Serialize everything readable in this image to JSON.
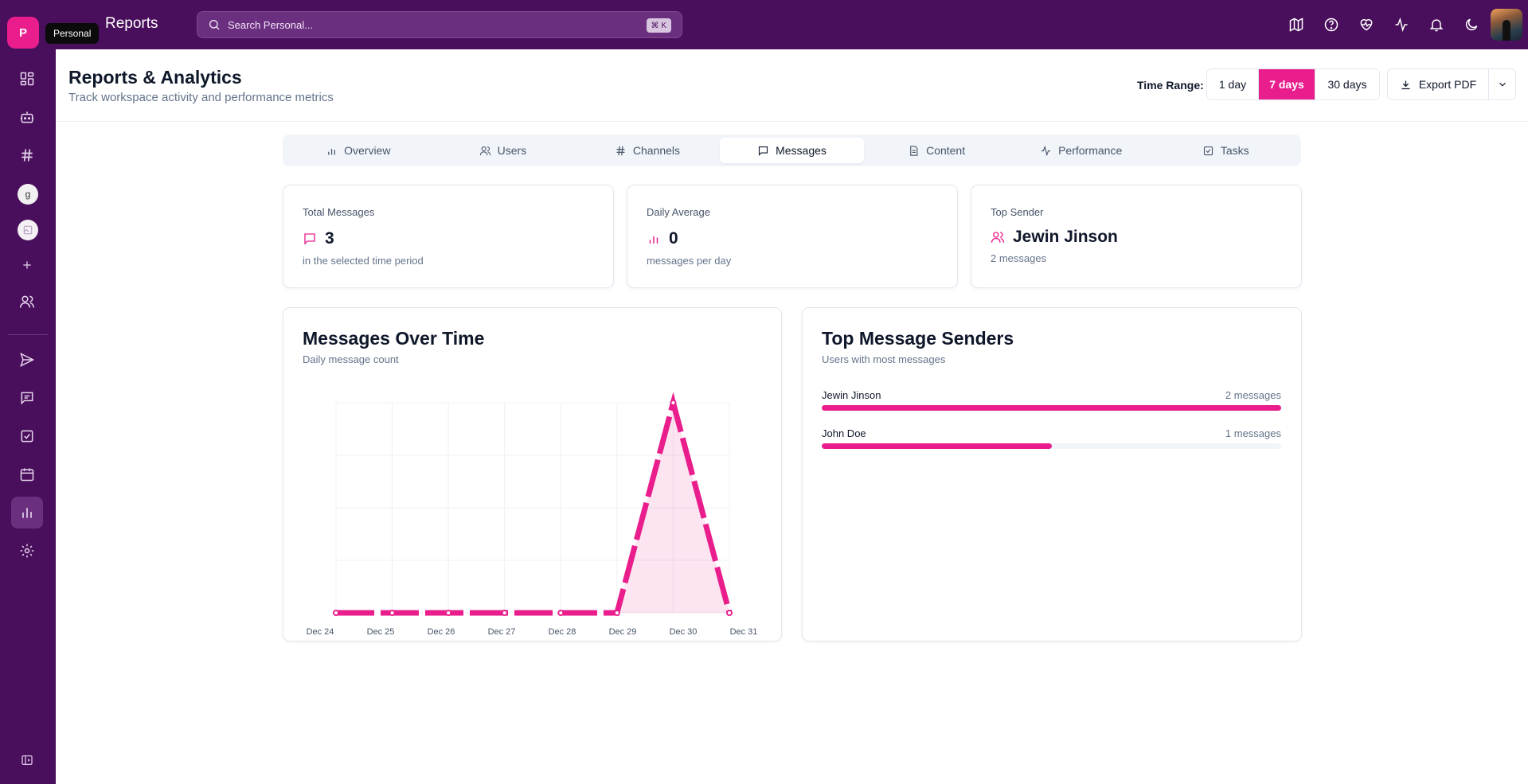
{
  "workspace": {
    "initial": "P",
    "tooltip": "Personal"
  },
  "rail": {
    "items": [
      {
        "name": "dashboard-icon"
      },
      {
        "name": "bot-icon"
      },
      {
        "name": "hash-icon"
      },
      {
        "name": "workspace-g",
        "label": "g"
      },
      {
        "name": "workspace-image"
      },
      {
        "name": "plus-icon"
      },
      {
        "name": "users-icon"
      },
      {
        "name": "send-icon"
      },
      {
        "name": "message-icon"
      },
      {
        "name": "task-icon"
      },
      {
        "name": "calendar-icon"
      },
      {
        "name": "reports-icon",
        "active": true
      },
      {
        "name": "settings-icon"
      },
      {
        "name": "collapse-sidebar-icon"
      }
    ]
  },
  "topbar": {
    "title": "Reports",
    "search_placeholder": "Search Personal...",
    "search_shortcut": "⌘ K",
    "icons": [
      "map-icon",
      "help-icon",
      "heart-pulse-icon",
      "activity-icon",
      "bell-icon",
      "moon-icon"
    ]
  },
  "page": {
    "title": "Reports & Analytics",
    "subtitle": "Track workspace activity and performance metrics",
    "time_range_label": "Time Range:",
    "time_ranges": [
      {
        "label": "1 day",
        "active": false
      },
      {
        "label": "7 days",
        "active": true
      },
      {
        "label": "30 days",
        "active": false
      }
    ],
    "export_label": "Export PDF"
  },
  "tabs": [
    {
      "label": "Overview",
      "icon": "bar-chart-icon",
      "active": false
    },
    {
      "label": "Users",
      "icon": "users-icon",
      "active": false
    },
    {
      "label": "Channels",
      "icon": "hash-icon",
      "active": false
    },
    {
      "label": "Messages",
      "icon": "message-icon",
      "active": true
    },
    {
      "label": "Content",
      "icon": "file-icon",
      "active": false
    },
    {
      "label": "Performance",
      "icon": "activity-icon",
      "active": false
    },
    {
      "label": "Tasks",
      "icon": "task-icon",
      "active": false
    }
  ],
  "stats": {
    "total": {
      "label": "Total Messages",
      "value": "3",
      "note": "in the selected time period",
      "icon": "message-icon"
    },
    "daily": {
      "label": "Daily Average",
      "value": "0",
      "note": "messages per day",
      "icon": "bar-chart-icon"
    },
    "top": {
      "label": "Top Sender",
      "value": "Jewin Jinson",
      "note": "2 messages",
      "icon": "users-icon"
    }
  },
  "messages_chart": {
    "title": "Messages Over Time",
    "subtitle": "Daily message count"
  },
  "top_senders": {
    "title": "Top Message Senders",
    "subtitle": "Users with most messages",
    "items": [
      {
        "name": "Jewin Jinson",
        "count_label": "2 messages",
        "count": 2
      },
      {
        "name": "John Doe",
        "count_label": "1 messages",
        "count": 1
      }
    ],
    "max": 2
  },
  "colors": {
    "accent": "#e91e8c",
    "sidebar": "#4a0f5c"
  },
  "chart_data": {
    "type": "line",
    "title": "",
    "categories": [
      "Dec 24",
      "Dec 25",
      "Dec 26",
      "Dec 27",
      "Dec 28",
      "Dec 29",
      "Dec 30",
      "Dec 31"
    ],
    "series": [
      {
        "values": [
          0,
          0,
          0,
          0,
          0,
          0,
          3,
          0
        ]
      }
    ],
    "ylim": [
      0,
      3
    ],
    "grid": true,
    "area_fill": true
  }
}
